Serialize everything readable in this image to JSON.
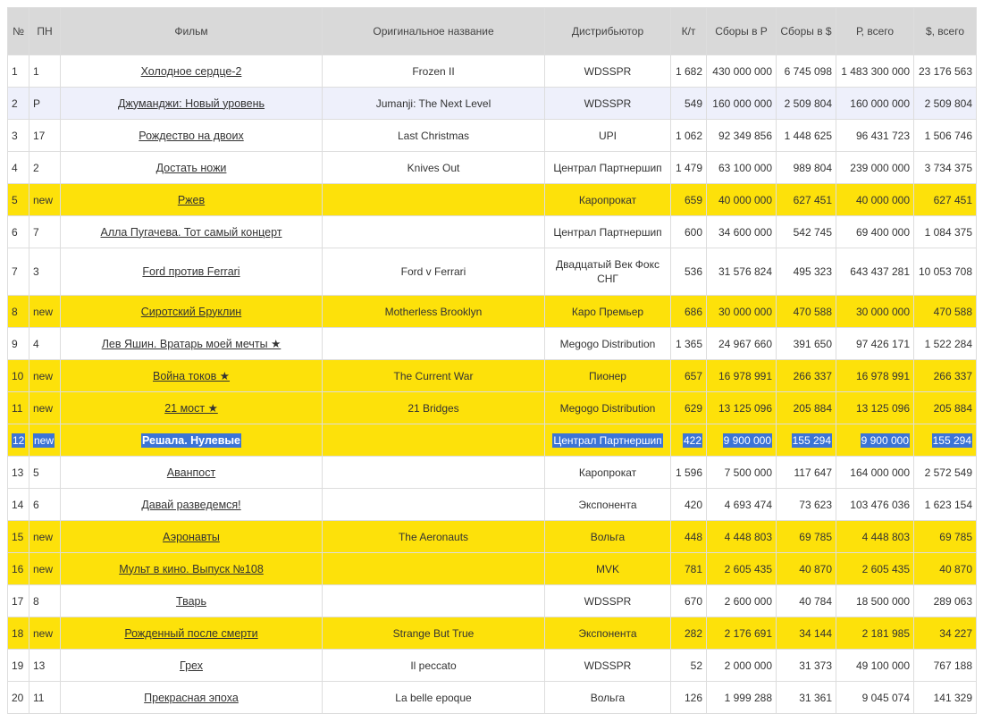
{
  "headers": [
    "№",
    "ПН",
    "Фильм",
    "Оригинальное название",
    "Дистрибьютор",
    "К/т",
    "Сборы в Р",
    "Сборы в $",
    "Р, всего",
    "$, всего"
  ],
  "rows": [
    {
      "num": "1",
      "prev": "1",
      "film": "Холодное сердце-2",
      "orig": "Frozen II",
      "dist": "WDSSPR",
      "kt": "1 682",
      "rub": "430 000 000",
      "usd": "6 745 098",
      "rub_total": "1 483 300 000",
      "usd_total": "23 176 563",
      "style": ""
    },
    {
      "num": "2",
      "prev": "Р",
      "film": "Джуманджи: Новый уровень",
      "orig": "Jumanji: The Next Level",
      "dist": "WDSSPR",
      "kt": "549",
      "rub": "160 000 000",
      "usd": "2 509 804",
      "rub_total": "160 000 000",
      "usd_total": "2 509 804",
      "style": "alt"
    },
    {
      "num": "3",
      "prev": "17",
      "film": "Рождество на двоих",
      "orig": "Last Christmas",
      "dist": "UPI",
      "kt": "1 062",
      "rub": "92 349 856",
      "usd": "1 448 625",
      "rub_total": "96 431 723",
      "usd_total": "1 506 746",
      "style": ""
    },
    {
      "num": "4",
      "prev": "2",
      "film": "Достать ножи",
      "orig": "Knives Out",
      "dist": "Централ Партнершип",
      "kt": "1 479",
      "rub": "63 100 000",
      "usd": "989 804",
      "rub_total": "239 000 000",
      "usd_total": "3 734 375",
      "style": ""
    },
    {
      "num": "5",
      "prev": "new",
      "film": "Ржев",
      "orig": "",
      "dist": "Каропрокат",
      "kt": "659",
      "rub": "40 000 000",
      "usd": "627 451",
      "rub_total": "40 000 000",
      "usd_total": "627 451",
      "style": "new"
    },
    {
      "num": "6",
      "prev": "7",
      "film": "Алла Пугачева. Тот самый концерт",
      "orig": "",
      "dist": "Централ Партнершип",
      "kt": "600",
      "rub": "34 600 000",
      "usd": "542 745",
      "rub_total": "69 400 000",
      "usd_total": "1 084 375",
      "style": ""
    },
    {
      "num": "7",
      "prev": "3",
      "film": "Ford против Ferrari",
      "orig": "Ford v Ferrari",
      "dist": "Двадцатый Век Фокс СНГ",
      "kt": "536",
      "rub": "31 576 824",
      "usd": "495 323",
      "rub_total": "643 437 281",
      "usd_total": "10 053 708",
      "style": "tall"
    },
    {
      "num": "8",
      "prev": "new",
      "film": "Сиротский Бруклин",
      "orig": "Motherless Brooklyn",
      "dist": "Каро Премьер",
      "kt": "686",
      "rub": "30 000 000",
      "usd": "470 588",
      "rub_total": "30 000 000",
      "usd_total": "470 588",
      "style": "new"
    },
    {
      "num": "9",
      "prev": "4",
      "film": "Лев Яшин. Вратарь моей мечты ★",
      "orig": "",
      "dist": "Megogo Distribution",
      "kt": "1 365",
      "rub": "24 967 660",
      "usd": "391 650",
      "rub_total": "97 426 171",
      "usd_total": "1 522 284",
      "style": ""
    },
    {
      "num": "10",
      "prev": "new",
      "film": "Война токов ★",
      "orig": "The Current War",
      "dist": "Пионер",
      "kt": "657",
      "rub": "16 978 991",
      "usd": "266 337",
      "rub_total": "16 978 991",
      "usd_total": "266 337",
      "style": "new"
    },
    {
      "num": "11",
      "prev": "new",
      "film": "21 мост ★",
      "orig": "21 Bridges",
      "dist": "Megogo Distribution",
      "kt": "629",
      "rub": "13 125 096",
      "usd": "205 884",
      "rub_total": "13 125 096",
      "usd_total": "205 884",
      "style": "new"
    },
    {
      "num": "12",
      "prev": "new",
      "film": "Решала. Нулевые",
      "orig": "",
      "dist": "Централ Партнершип",
      "kt": "422",
      "rub": "9 900 000",
      "usd": "155 294",
      "rub_total": "9 900 000",
      "usd_total": "155 294",
      "style": "sel"
    },
    {
      "num": "13",
      "prev": "5",
      "film": "Аванпост",
      "orig": "",
      "dist": "Каропрокат",
      "kt": "1 596",
      "rub": "7 500 000",
      "usd": "117 647",
      "rub_total": "164 000 000",
      "usd_total": "2 572 549",
      "style": ""
    },
    {
      "num": "14",
      "prev": "6",
      "film": "Давай разведемся!",
      "orig": "",
      "dist": "Экспонента",
      "kt": "420",
      "rub": "4 693 474",
      "usd": "73 623",
      "rub_total": "103 476 036",
      "usd_total": "1 623 154",
      "style": ""
    },
    {
      "num": "15",
      "prev": "new",
      "film": "Аэронавты",
      "orig": "The Aeronauts",
      "dist": "Вольга",
      "kt": "448",
      "rub": "4 448 803",
      "usd": "69 785",
      "rub_total": "4 448 803",
      "usd_total": "69 785",
      "style": "new"
    },
    {
      "num": "16",
      "prev": "new",
      "film": "Мульт в кино. Выпуск №108",
      "orig": "",
      "dist": "MVK",
      "kt": "781",
      "rub": "2 605 435",
      "usd": "40 870",
      "rub_total": "2 605 435",
      "usd_total": "40 870",
      "style": "new"
    },
    {
      "num": "17",
      "prev": "8",
      "film": "Тварь",
      "orig": "",
      "dist": "WDSSPR",
      "kt": "670",
      "rub": "2 600 000",
      "usd": "40 784",
      "rub_total": "18 500 000",
      "usd_total": "289 063",
      "style": ""
    },
    {
      "num": "18",
      "prev": "new",
      "film": "Рожденный после смерти",
      "orig": "Strange But True",
      "dist": "Экспонента",
      "kt": "282",
      "rub": "2 176 691",
      "usd": "34 144",
      "rub_total": "2 181 985",
      "usd_total": "34 227",
      "style": "new"
    },
    {
      "num": "19",
      "prev": "13",
      "film": "Грех",
      "orig": "Il peccato",
      "dist": "WDSSPR",
      "kt": "52",
      "rub": "2 000 000",
      "usd": "31 373",
      "rub_total": "49 100 000",
      "usd_total": "767 188",
      "style": ""
    },
    {
      "num": "20",
      "prev": "11",
      "film": "Прекрасная эпоха",
      "orig": "La belle epoque",
      "dist": "Вольга",
      "kt": "126",
      "rub": "1 999 288",
      "usd": "31 361",
      "rub_total": "9 045 074",
      "usd_total": "141 329",
      "style": ""
    }
  ],
  "colors": {
    "header_bg": "#d9d9d9",
    "new_row": "#fde10a",
    "alt_row": "#eef0fb",
    "selection": "#3c74d6"
  }
}
